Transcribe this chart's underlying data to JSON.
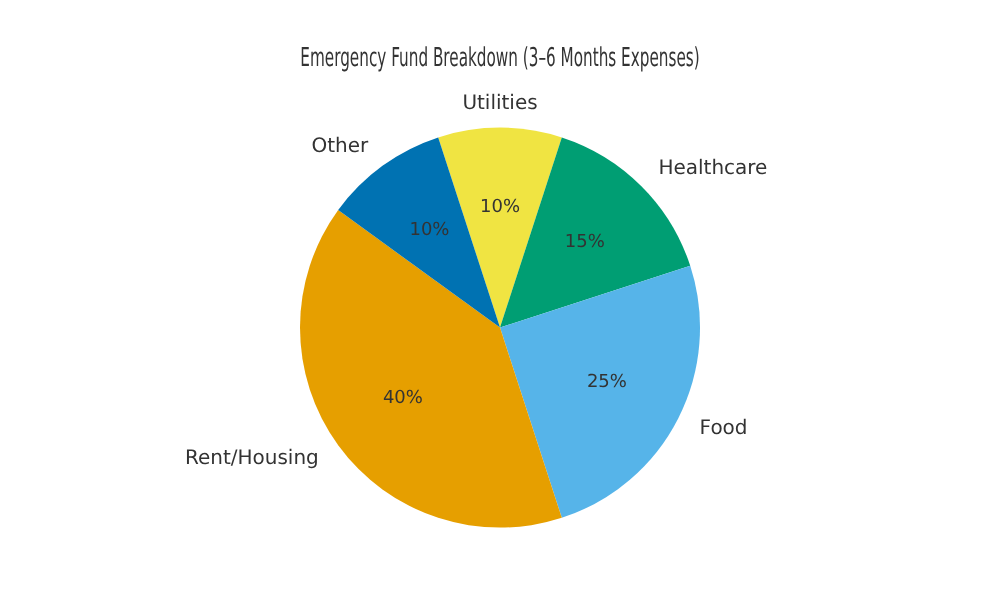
{
  "chart_data": {
    "type": "pie",
    "title": "Emergency Fund Breakdown (3–6 Months Expenses)",
    "categories": [
      "Utilities",
      "Healthcare",
      "Food",
      "Rent/Housing",
      "Other"
    ],
    "values": [
      10,
      15,
      25,
      40,
      10
    ],
    "colors": [
      "#f0e442",
      "#009e73",
      "#56b4e9",
      "#e69f00",
      "#0072b2"
    ],
    "value_labels": [
      "10%",
      "15%",
      "25%",
      "40%",
      "10%"
    ],
    "legend": false
  }
}
